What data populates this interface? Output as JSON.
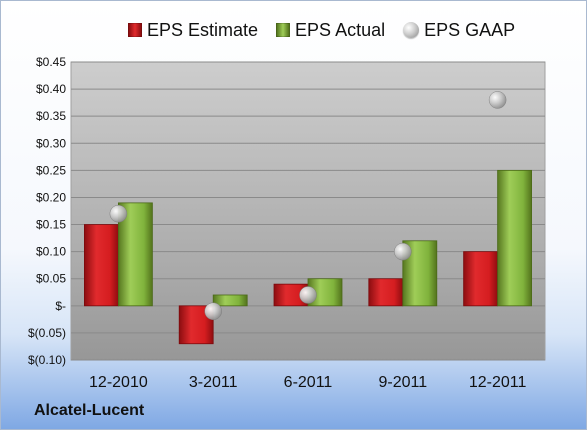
{
  "company": "Alcatel-Lucent",
  "chart_data": {
    "type": "bar",
    "categories": [
      "12-2010",
      "3-2011",
      "6-2011",
      "9-2011",
      "12-2011"
    ],
    "series": [
      {
        "name": "EPS Estimate",
        "kind": "bar",
        "color": "#d91f22",
        "values": [
          0.15,
          -0.07,
          0.04,
          0.05,
          0.1
        ]
      },
      {
        "name": "EPS Actual",
        "kind": "bar",
        "color": "#7fb03a",
        "values": [
          0.19,
          0.02,
          0.05,
          0.12,
          0.25
        ]
      },
      {
        "name": "EPS GAAP",
        "kind": "scatter",
        "color": "#b9b9b9",
        "values": [
          0.17,
          -0.01,
          0.02,
          0.1,
          0.38
        ]
      }
    ],
    "ylim": [
      -0.1,
      0.45
    ],
    "y_ticks": [
      0.45,
      0.4,
      0.35,
      0.3,
      0.25,
      0.2,
      0.15,
      0.1,
      0.05,
      0.0,
      -0.05,
      -0.1
    ],
    "y_tick_labels": [
      "$0.45",
      "$0.40",
      "$0.35",
      "$0.30",
      "$0.25",
      "$0.20",
      "$0.15",
      "$0.10",
      "$0.05",
      "$-",
      "$(0.05)",
      "$(0.10)"
    ],
    "grid": true,
    "legend_position": "top"
  }
}
